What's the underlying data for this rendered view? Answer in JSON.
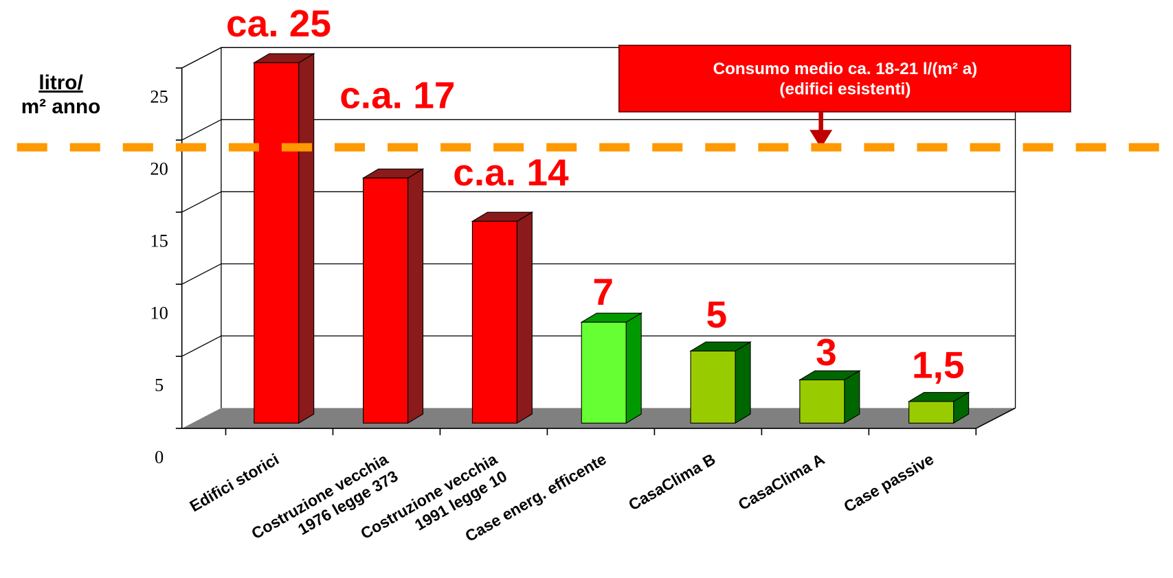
{
  "chart_data": {
    "type": "bar3d",
    "y_label": "litro/\nm² anno",
    "categories": [
      "Edifici storici",
      "Costruzione vecchia\n1976 legge 373",
      "Costruzione vecchia\n1991 legge 10",
      "Case energ. efficente",
      "CasaClima B",
      "CasaClima A",
      "Case passive"
    ],
    "values": [
      25,
      17,
      14,
      7,
      5,
      3,
      1.5
    ],
    "value_labels": [
      "ca. 25",
      "c.a. 17",
      "c.a. 14",
      "7",
      "5",
      "3",
      "1,5"
    ],
    "colors": [
      "#ff0000",
      "#ff0000",
      "#ff0000",
      "#66ff33",
      "#99cc00",
      "#99cc00",
      "#99cc00"
    ],
    "side_colors": [
      "#8b1a1a",
      "#8b1a1a",
      "#8b1a1a",
      "#009900",
      "#006600",
      "#006600",
      "#006600"
    ],
    "ylim": [
      0,
      25
    ],
    "yticks": [
      0,
      5,
      10,
      15,
      20,
      25
    ],
    "grid": true,
    "reference_line": {
      "value": 19.5,
      "color": "#ff9900"
    },
    "annotation": "Consumo medio ca. 18-21 l/(m² a)\n(edifici esistenti)"
  }
}
